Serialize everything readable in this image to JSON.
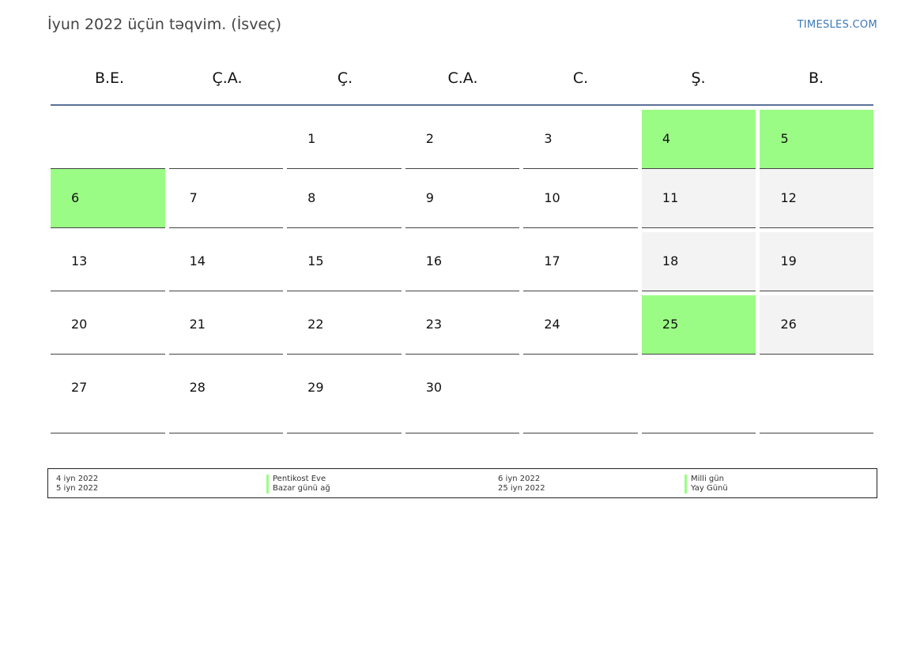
{
  "header": {
    "title": "İyun 2022 üçün təqvim. (İsveç)",
    "brand": "TIMESLES.COM"
  },
  "calendar": {
    "weekdays": [
      "B.E.",
      "Ç.A.",
      "Ç.",
      "C.A.",
      "C.",
      "Ş.",
      "B."
    ],
    "weeks": [
      [
        {
          "day": "",
          "type": "empty"
        },
        {
          "day": "",
          "type": "empty"
        },
        {
          "day": "1",
          "type": "normal"
        },
        {
          "day": "2",
          "type": "normal"
        },
        {
          "day": "3",
          "type": "normal"
        },
        {
          "day": "4",
          "type": "holiday"
        },
        {
          "day": "5",
          "type": "holiday"
        }
      ],
      [
        {
          "day": "6",
          "type": "holiday"
        },
        {
          "day": "7",
          "type": "normal"
        },
        {
          "day": "8",
          "type": "normal"
        },
        {
          "day": "9",
          "type": "normal"
        },
        {
          "day": "10",
          "type": "normal"
        },
        {
          "day": "11",
          "type": "weekend"
        },
        {
          "day": "12",
          "type": "weekend"
        }
      ],
      [
        {
          "day": "13",
          "type": "normal"
        },
        {
          "day": "14",
          "type": "normal"
        },
        {
          "day": "15",
          "type": "normal"
        },
        {
          "day": "16",
          "type": "normal"
        },
        {
          "day": "17",
          "type": "normal"
        },
        {
          "day": "18",
          "type": "weekend"
        },
        {
          "day": "19",
          "type": "weekend"
        }
      ],
      [
        {
          "day": "20",
          "type": "normal"
        },
        {
          "day": "21",
          "type": "normal"
        },
        {
          "day": "22",
          "type": "normal"
        },
        {
          "day": "23",
          "type": "normal"
        },
        {
          "day": "24",
          "type": "normal"
        },
        {
          "day": "25",
          "type": "holiday"
        },
        {
          "day": "26",
          "type": "weekend"
        }
      ],
      [
        {
          "day": "27",
          "type": "normal"
        },
        {
          "day": "28",
          "type": "normal"
        },
        {
          "day": "29",
          "type": "normal"
        },
        {
          "day": "30",
          "type": "normal"
        },
        {
          "day": "",
          "type": "empty"
        },
        {
          "day": "",
          "type": "empty"
        },
        {
          "day": "",
          "type": "empty"
        }
      ]
    ]
  },
  "legend": {
    "dates_left": [
      "4 iyn 2022",
      "5 iyn 2022"
    ],
    "names_left": [
      "Pentikost Eve",
      "Bazar günü ağ"
    ],
    "dates_right": [
      "6 iyn 2022",
      "25 iyn 2022"
    ],
    "names_right": [
      "Milli gün",
      "Yay Günü"
    ]
  },
  "colors": {
    "holiday": "#9bfc85",
    "weekend": "#f3f3f3",
    "header_rule": "#5b7196",
    "brand": "#3a79b8"
  }
}
